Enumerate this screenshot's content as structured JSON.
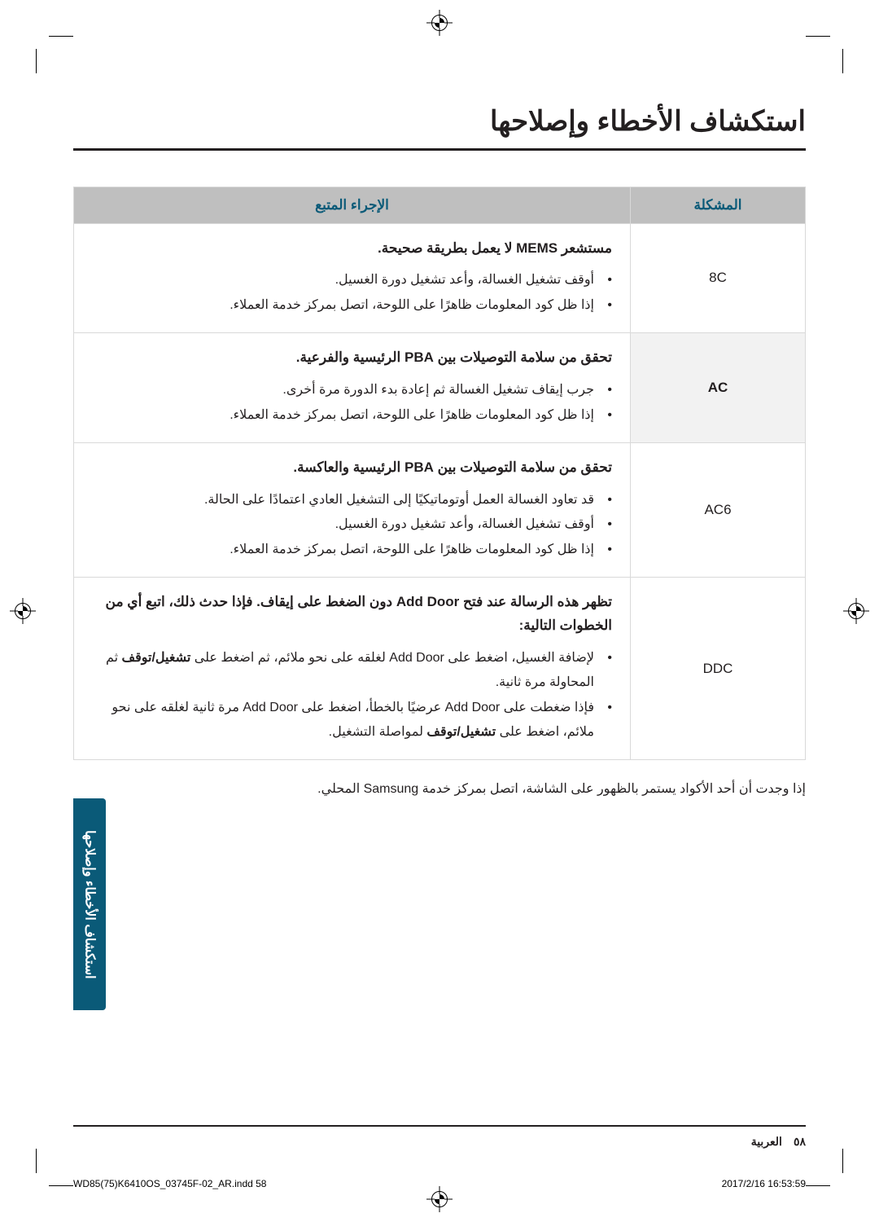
{
  "heading": "استكشاف الأخطاء وإصلاحها",
  "table": {
    "headers": {
      "code": "المشكلة",
      "action": "الإجراء المتبع"
    },
    "rows": [
      {
        "code": "8C",
        "code_class": "",
        "lead": "مستشعر MEMS لا يعمل بطريقة صحيحة.",
        "bullets": [
          "أوقف تشغيل الغسالة، وأعد تشغيل دورة الغسيل.",
          "إذا ظل كود المعلومات ظاهرًا على اللوحة، اتصل بمركز خدمة العملاء."
        ]
      },
      {
        "code": "AC",
        "code_class": "ac",
        "lead": "تحقق من سلامة التوصيلات بين PBA الرئيسية والفرعية.",
        "bullets": [
          "جرب إيقاف تشغيل الغسالة ثم إعادة بدء الدورة مرة أخرى.",
          "إذا ظل كود المعلومات ظاهرًا على اللوحة، اتصل بمركز خدمة العملاء."
        ]
      },
      {
        "code": "AC6",
        "code_class": "",
        "lead": "تحقق من سلامة التوصيلات بين PBA الرئيسية والعاكسة.",
        "bullets": [
          "قد تعاود الغسالة العمل أوتوماتيكيًا إلى التشغيل العادي اعتمادًا على الحالة.",
          "أوقف تشغيل الغسالة، وأعد تشغيل دورة الغسيل.",
          "إذا ظل كود المعلومات ظاهرًا على اللوحة، اتصل بمركز خدمة العملاء."
        ]
      },
      {
        "code": "DDC",
        "code_class": "",
        "lead": "تظهر هذه الرسالة عند فتح Add Door دون الضغط على إيقاف. فإذا حدث ذلك، اتبع أي من الخطوات التالية:",
        "bullets": [
          "لإضافة الغسيل، اضغط على Add Door لغلقه على نحو ملائم، ثم اضغط على <b>تشغيل/توقف</b> ثم المحاولة مرة ثانية.",
          "فإذا ضغطت على Add Door عرضيًا بالخطأ، اضغط على Add Door مرة ثانية لغلقه على نحو ملائم، اضغط على <b>تشغيل/توقف</b> لمواصلة التشغيل."
        ]
      }
    ]
  },
  "note": "إذا وجدت أن أحد الأكواد يستمر بالظهور على الشاشة، اتصل بمركز خدمة Samsung المحلي.",
  "sidetab": "استكشاف الأخطاء وإصلاحها",
  "footer": {
    "pagelabel": "العربية",
    "pagenum": "٥٨"
  },
  "printfoot": {
    "left": "WD85(75)K6410OS_03745F-02_AR.indd   58",
    "right": "2017/2/16   16:53:59"
  },
  "colors": {
    "header_bg": "#bfbfbf",
    "header_fg": "#0a5a78",
    "border": "#d9d9d9",
    "ac_bg": "#f2f2f2",
    "tab_bg": "#0a5a78",
    "text": "#231f20"
  }
}
